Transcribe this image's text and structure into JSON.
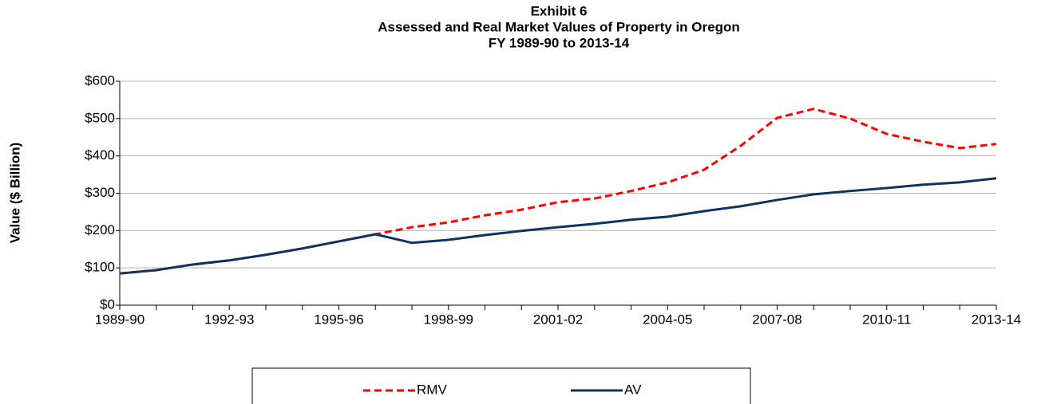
{
  "chart_data": {
    "type": "line",
    "title": [
      "Exhibit 6",
      "Assessed and Real Market Values of Property in Oregon",
      "FY 1989-90 to 2013-14"
    ],
    "y_label": "Value ($ Billion)",
    "categories": [
      "1989-90",
      null,
      null,
      "1992-93",
      null,
      null,
      "1995-96",
      null,
      null,
      "1998-99",
      null,
      null,
      "2001-02",
      null,
      null,
      "2004-05",
      null,
      null,
      "2007-08",
      null,
      null,
      "2010-11",
      null,
      null,
      "2013-14"
    ],
    "series": [
      {
        "name": "RMV",
        "color": "#ff0000",
        "dashed": true,
        "values": [
          85,
          94,
          109,
          120,
          135,
          152,
          171,
          190,
          209,
          222,
          241,
          256,
          276,
          286,
          306,
          329,
          363,
          427,
          502,
          526,
          500,
          459,
          438,
          421,
          432
        ]
      },
      {
        "name": "AV",
        "color": "#0d3461",
        "dashed": false,
        "values": [
          85,
          94,
          109,
          120,
          135,
          152,
          171,
          190,
          167,
          175,
          188,
          199,
          209,
          218,
          229,
          237,
          252,
          265,
          282,
          297,
          306,
          314,
          323,
          329,
          340
        ]
      }
    ],
    "ylim": [
      0,
      600
    ],
    "yticks": [
      {
        "value": 0,
        "label": "$0"
      },
      {
        "value": 100,
        "label": "$100"
      },
      {
        "value": 200,
        "label": "$200"
      },
      {
        "value": 300,
        "label": "$300"
      },
      {
        "value": 400,
        "label": "$400"
      },
      {
        "value": 500,
        "label": "$500"
      },
      {
        "value": 600,
        "label": "$600"
      }
    ],
    "grid": true,
    "legend": "bottom"
  }
}
